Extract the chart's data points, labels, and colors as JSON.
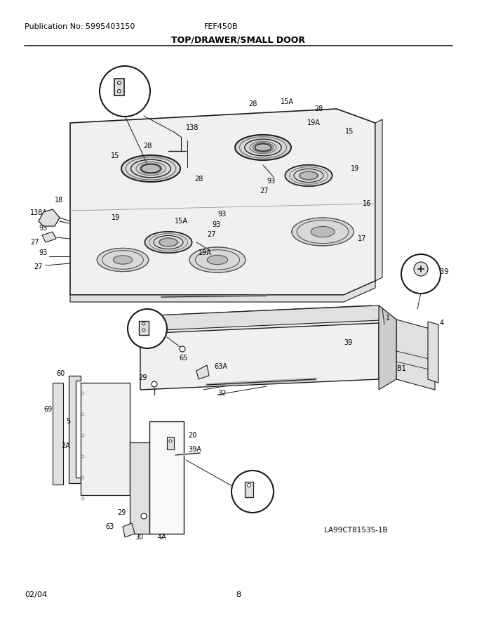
{
  "title": "TOP/DRAWER/SMALL DOOR",
  "pub_no": "Publication No: 5995403150",
  "model": "FEF450B",
  "diagram_id": "LA99CT81535-1B",
  "date": "02/04",
  "page": "8",
  "bg": "#ffffff",
  "lc": "#1a1a1a",
  "gray1": "#cccccc",
  "gray2": "#e0e0e0",
  "gray3": "#f0f0f0"
}
